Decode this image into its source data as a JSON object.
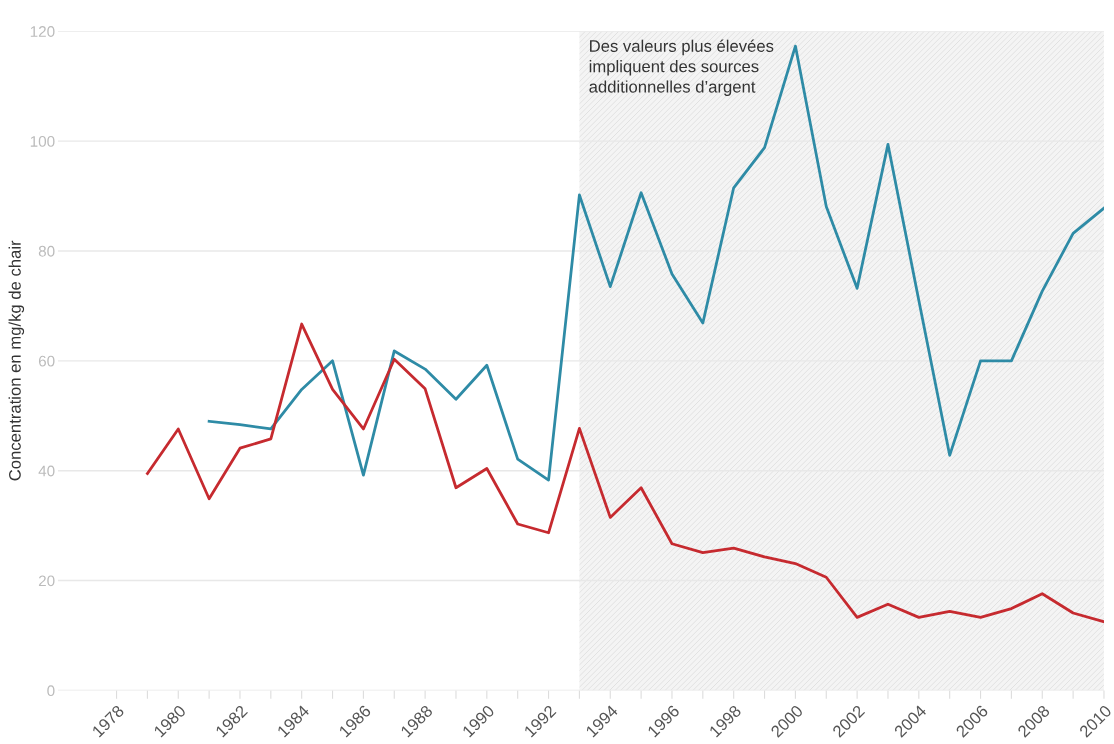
{
  "chart_data": {
    "type": "line",
    "ylabel": "Concentration en mg/kg de chair",
    "x": [
      1979,
      1980,
      1981,
      1982,
      1983,
      1984,
      1985,
      1986,
      1987,
      1988,
      1989,
      1990,
      1991,
      1992,
      1993,
      1994,
      1995,
      1996,
      1997,
      1998,
      1999,
      2000,
      2001,
      2002,
      2003,
      2004,
      2005,
      2006,
      2007,
      2008,
      2009,
      2010
    ],
    "series": [
      {
        "color": "#2e8ba6",
        "values": [
          null,
          null,
          49.0,
          48.4,
          47.6,
          54.8,
          60.0,
          39.2,
          61.8,
          58.5,
          53.0,
          59.2,
          42.1,
          38.3,
          90.2,
          73.5,
          90.6,
          75.8,
          66.9,
          91.5,
          98.8,
          117.3,
          88.1,
          73.2,
          99.4,
          71,
          42.8,
          60,
          60,
          72.7,
          83.2,
          87.8
        ]
      },
      {
        "color": "#c62a2f",
        "values": [
          39.5,
          47.6,
          34.9,
          44.1,
          45.8,
          66.7,
          54.8,
          47.6,
          60.3,
          54.9,
          36.9,
          40.4,
          30.3,
          28.7,
          47.7,
          31.5,
          36.9,
          26.7,
          25.1,
          25.9,
          24.3,
          23.1,
          20.6,
          13.3,
          15.7,
          13.3,
          14.4,
          13.3,
          14.9,
          17.6,
          14.1,
          12.5
        ]
      }
    ],
    "bands": [
      {
        "axis": "x",
        "from": 1993,
        "to": 2010,
        "label": "Des valeurs plus élevées\nimpliquent des sources\nadditionnelles d’argent",
        "color": "#f4f4f4"
      }
    ],
    "xlim": [
      1976.1,
      2010
    ],
    "ylim": [
      0,
      120
    ],
    "xticks": [
      {
        "value": 1978,
        "label": "1978"
      },
      {
        "value": 1979,
        "label": null
      },
      {
        "value": 1980,
        "label": "1980"
      },
      {
        "value": 1981,
        "label": null
      },
      {
        "value": 1982,
        "label": "1982"
      },
      {
        "value": 1983,
        "label": null
      },
      {
        "value": 1984,
        "label": "1984"
      },
      {
        "value": 1985,
        "label": null
      },
      {
        "value": 1986,
        "label": "1986"
      },
      {
        "value": 1987,
        "label": null
      },
      {
        "value": 1988,
        "label": "1988"
      },
      {
        "value": 1989,
        "label": null
      },
      {
        "value": 1990,
        "label": "1990"
      },
      {
        "value": 1991,
        "label": null
      },
      {
        "value": 1992,
        "label": "1992"
      },
      {
        "value": 1993,
        "label": null
      },
      {
        "value": 1994,
        "label": "1994"
      },
      {
        "value": 1995,
        "label": null
      },
      {
        "value": 1996,
        "label": "1996"
      },
      {
        "value": 1997,
        "label": null
      },
      {
        "value": 1998,
        "label": "1998"
      },
      {
        "value": 1999,
        "label": null
      },
      {
        "value": 2000,
        "label": "2000"
      },
      {
        "value": 2001,
        "label": null
      },
      {
        "value": 2002,
        "label": "2002"
      },
      {
        "value": 2003,
        "label": null
      },
      {
        "value": 2004,
        "label": "2004"
      },
      {
        "value": 2005,
        "label": null
      },
      {
        "value": 2006,
        "label": "2006"
      },
      {
        "value": 2007,
        "label": null
      },
      {
        "value": 2008,
        "label": "2008"
      },
      {
        "value": 2009,
        "label": null
      },
      {
        "value": 2010,
        "label": "2010"
      }
    ],
    "yticks": [
      0,
      20,
      40,
      60,
      80,
      100,
      120
    ],
    "grid": "y",
    "marker": "none",
    "line_style": "solid"
  }
}
